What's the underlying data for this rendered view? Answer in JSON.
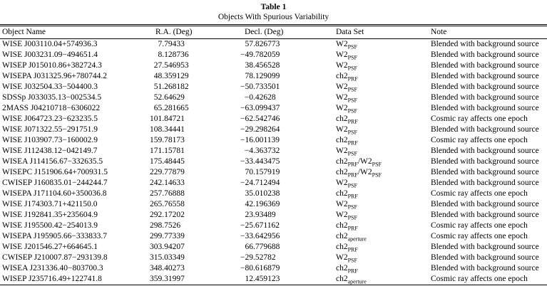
{
  "table": {
    "number": "Table 1",
    "title": "Objects With Spurious Variability",
    "columns": [
      "Object Name",
      "R.A. (Deg)",
      "Decl. (Deg)",
      "Data Set",
      "Note"
    ],
    "notes": {
      "blended": "Blended with background source",
      "cosmic": "Cosmic ray affects one epoch"
    },
    "rows": [
      {
        "name": "WISE J003110.04+574936.3",
        "ra": "7.79433",
        "decl": "57.826773",
        "dataset": "W2_PSF",
        "note": "Blended with background source"
      },
      {
        "name": "WISE J003231.09−494651.4",
        "ra": "8.128736",
        "decl": "−49.782059",
        "dataset": "W2_PSF",
        "note": "Blended with background source"
      },
      {
        "name": "WISEP J015010.86+382724.3",
        "ra": "27.546953",
        "decl": "38.456528",
        "dataset": "W2_PSF",
        "note": "Blended with background source"
      },
      {
        "name": "WISEPA J031325.96+780744.2",
        "ra": "48.359129",
        "decl": "78.129099",
        "dataset": "ch2_PRF",
        "note": "Blended with background source"
      },
      {
        "name": "WISE J032504.33−504400.3",
        "ra": "51.268182",
        "decl": "−50.733501",
        "dataset": "W2_PSF",
        "note": "Blended with background source"
      },
      {
        "name": "SDSSp J033035.13−002534.5",
        "ra": "52.64629",
        "decl": "−0.42628",
        "dataset": "W2_PSF",
        "note": "Blended with background source"
      },
      {
        "name": "2MASS J04210718−6306022",
        "ra": "65.281665",
        "decl": "−63.099437",
        "dataset": "W2_PSF",
        "note": "Blended with background source"
      },
      {
        "name": "WISE J064723.23−623235.5",
        "ra": "101.84721",
        "decl": "−62.542746",
        "dataset": "ch2_PRF",
        "note": "Cosmic ray affects one epoch"
      },
      {
        "name": "WISE J071322.55−291751.9",
        "ra": "108.34441",
        "decl": "−29.298264",
        "dataset": "W2_PSF",
        "note": "Blended with background source"
      },
      {
        "name": "WISE J103907.73−160002.9",
        "ra": "159.78173",
        "decl": "−16.001139",
        "dataset": "ch2_PRF",
        "note": "Cosmic ray affects one epoch"
      },
      {
        "name": "WISE J112438.12−042149.7",
        "ra": "171.15781",
        "decl": "−4.363732",
        "dataset": "W2_PSF",
        "note": "Blended with background source"
      },
      {
        "name": "WISEA J114156.67−332635.5",
        "ra": "175.48445",
        "decl": "−33.443475",
        "dataset": "ch2_PRF/W2_PSF",
        "note": "Blended with background source"
      },
      {
        "name": "WISEPC J151906.64+700931.5",
        "ra": "229.77879",
        "decl": "70.157919",
        "dataset": "ch2_PRF/W2_PSF",
        "note": "Blended with background source"
      },
      {
        "name": "CWISEP J160835.01−244244.7",
        "ra": "242.14633",
        "decl": "−24.712494",
        "dataset": "W2_PSF",
        "note": "Blended with background source"
      },
      {
        "name": "WISEPA J171104.60+350036.8",
        "ra": "257.76888",
        "decl": "35.010238",
        "dataset": "ch2_PRF",
        "note": "Cosmic ray affects one epoch"
      },
      {
        "name": "WISE J174303.71+421150.0",
        "ra": "265.76558",
        "decl": "42.196369",
        "dataset": "W2_PSF",
        "note": "Blended with background source"
      },
      {
        "name": "WISE J192841.35+235604.9",
        "ra": "292.17202",
        "decl": "23.93489",
        "dataset": "W2_PSF",
        "note": "Blended with background source"
      },
      {
        "name": "WISE J195500.42−254013.9",
        "ra": "298.7526",
        "decl": "−25.671162",
        "dataset": "ch2_PRF",
        "note": "Cosmic ray affects one epoch"
      },
      {
        "name": "WISEPA J195905.66−333833.7",
        "ra": "299.77339",
        "decl": "−33.642956",
        "dataset": "ch2_aperture",
        "note": "Cosmic ray affects one epoch"
      },
      {
        "name": "WISE J201546.27+664645.1",
        "ra": "303.94207",
        "decl": "66.779688",
        "dataset": "ch2_PRF",
        "note": "Blended with background source"
      },
      {
        "name": "CWISEP J210007.87−293139.8",
        "ra": "315.03349",
        "decl": "−29.52782",
        "dataset": "W2_PSF",
        "note": "Blended with background source"
      },
      {
        "name": "WISEA J231336.40−803700.3",
        "ra": "348.40273",
        "decl": "−80.616879",
        "dataset": "ch2_PRF",
        "note": "Blended with background source"
      },
      {
        "name": "WISEP J235716.49+122741.8",
        "ra": "359.31997",
        "decl": "12.459123",
        "dataset": "ch2_aperture",
        "note": "Cosmic ray affects one epoch"
      }
    ]
  }
}
